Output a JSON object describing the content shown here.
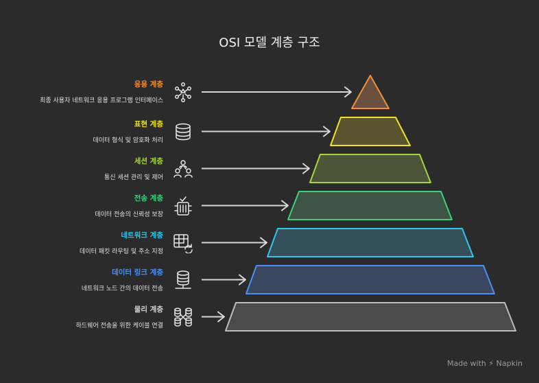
{
  "title": "OSI 모델 계층 구조",
  "layers": [
    {
      "name": "응용 계층",
      "desc": "최종 사용자 네트워크 응용 프로그램 인터페이스",
      "color": "#f0913a",
      "fill": "#6b5040",
      "icon": "network-nodes-icon"
    },
    {
      "name": "표현 계층",
      "desc": "데이터 형식 및 암호화 처리",
      "color": "#f2e120",
      "fill": "#5a5530",
      "icon": "database-icon"
    },
    {
      "name": "세션 계층",
      "desc": "통신 세션 관리 및 제어",
      "color": "#a6d63c",
      "fill": "#4d5538",
      "icon": "users-icon"
    },
    {
      "name": "전송 계층",
      "desc": "데이터 전송의 신뢰성 보장",
      "color": "#3ecf7a",
      "fill": "#3d5444",
      "icon": "server-check-icon"
    },
    {
      "name": "네트워크 계층",
      "desc": "데이터 패킷 라우팅 및 주소 지정",
      "color": "#2fc6ec",
      "fill": "#35505a",
      "icon": "table-refresh-icon"
    },
    {
      "name": "데이터 링크 계층",
      "desc": "네트워크 노드 간의 데이터 전송",
      "color": "#4c8ff2",
      "fill": "#3a465e",
      "icon": "database-network-icon"
    },
    {
      "name": "물리 계층",
      "desc": "하드웨어 전송을 위한 케이블 연결",
      "color": "#bdbdbd",
      "fill": "#4b4b4b",
      "icon": "cable-connection-icon"
    }
  ],
  "footer": {
    "made_with": "Made with",
    "brand": "Napkin",
    "icon": "napkin-bolt-icon"
  }
}
